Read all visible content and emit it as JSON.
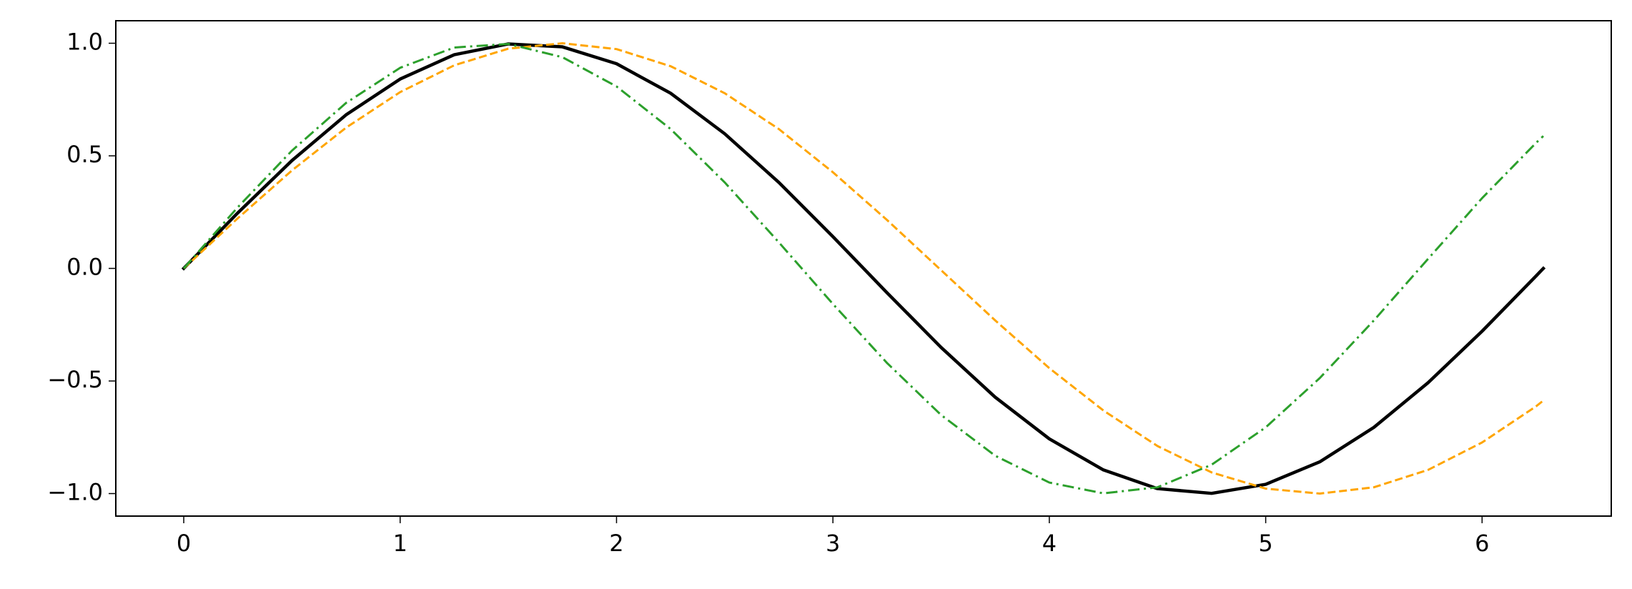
{
  "chart_data": {
    "type": "line",
    "x": [
      0,
      0.25,
      0.5,
      0.75,
      1,
      1.25,
      1.5,
      1.75,
      2,
      2.25,
      2.5,
      2.75,
      3,
      3.25,
      3.5,
      3.75,
      4,
      4.25,
      4.5,
      4.75,
      5,
      5.25,
      5.5,
      5.75,
      6,
      6.25,
      6.283
    ],
    "series": [
      {
        "color": "#000000",
        "linestyle": "solid",
        "linewidth": 4.5,
        "values": [
          0,
          0.247,
          0.479,
          0.682,
          0.841,
          0.949,
          0.997,
          0.984,
          0.909,
          0.778,
          0.598,
          0.382,
          0.141,
          -0.108,
          -0.351,
          -0.572,
          -0.757,
          -0.895,
          -0.978,
          -0.999,
          -0.959,
          -0.859,
          -0.706,
          -0.508,
          -0.279,
          -0.033,
          0
        ]
      },
      {
        "color": "#ffa500",
        "linestyle": "dashed",
        "linewidth": 3,
        "values": [
          0,
          0.223,
          0.435,
          0.625,
          0.783,
          0.902,
          0.976,
          1.0,
          0.974,
          0.898,
          0.778,
          0.619,
          0.427,
          0.215,
          -0.008,
          -0.231,
          -0.443,
          -0.631,
          -0.789,
          -0.906,
          -0.978,
          -1.0,
          -0.972,
          -0.895,
          -0.773,
          -0.612,
          -0.587
        ]
      },
      {
        "color": "#2ca02c",
        "linestyle": "dashdot",
        "linewidth": 3,
        "values": [
          0,
          0.272,
          0.523,
          0.735,
          0.891,
          0.981,
          0.997,
          0.938,
          0.808,
          0.619,
          0.382,
          0.116,
          -0.158,
          -0.42,
          -0.651,
          -0.832,
          -0.951,
          -0.999,
          -0.972,
          -0.872,
          -0.706,
          -0.487,
          -0.231,
          0.042,
          0.312,
          0.558,
          0.588
        ]
      }
    ],
    "xlim": [
      -0.314,
      6.597
    ],
    "ylim": [
      -1.1,
      1.1
    ],
    "xticks": [
      0,
      1,
      2,
      3,
      4,
      5,
      6
    ],
    "yticks": [
      {
        "value": -1.0,
        "label": "−1.0"
      },
      {
        "value": -0.5,
        "label": "−0.5"
      },
      {
        "value": 0.0,
        "label": "0.0"
      },
      {
        "value": 0.5,
        "label": "0.5"
      },
      {
        "value": 1.0,
        "label": "1.0"
      }
    ],
    "grid": false
  }
}
